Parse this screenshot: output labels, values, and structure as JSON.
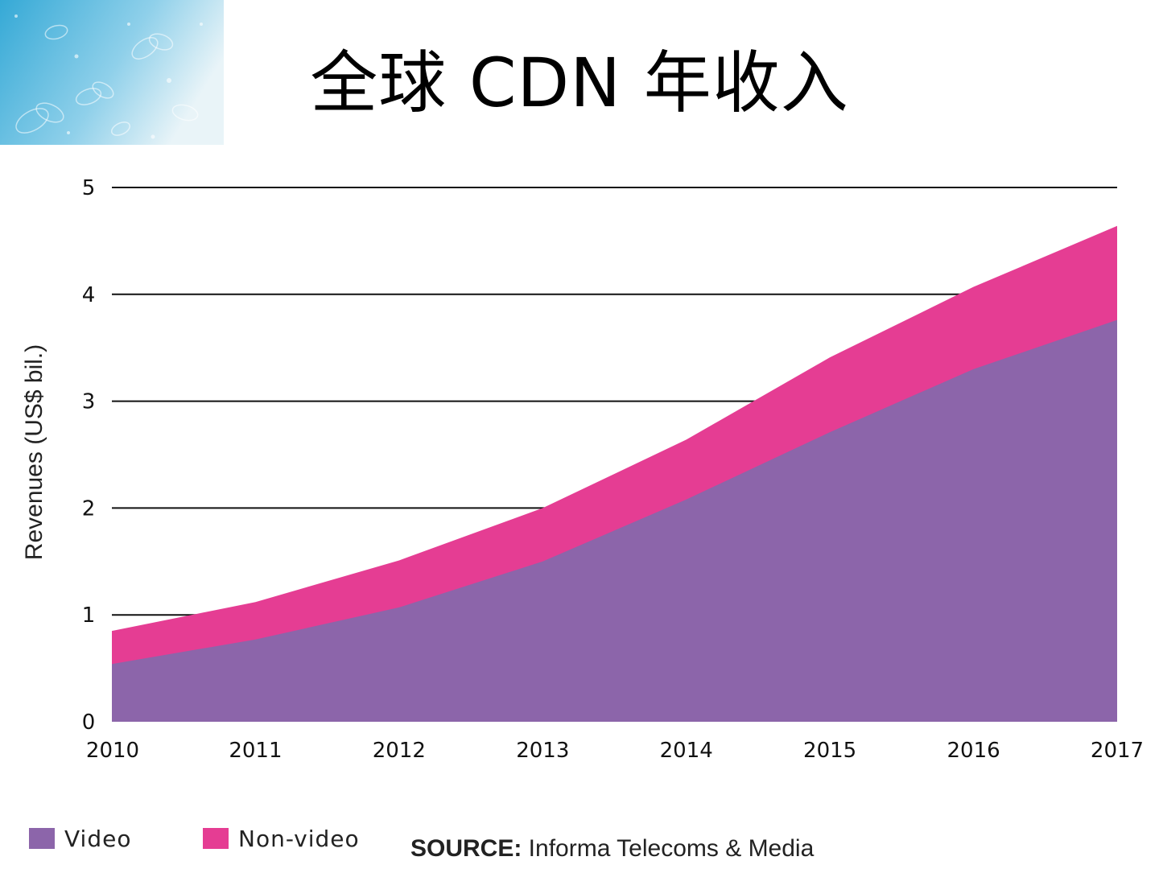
{
  "title": "全球 CDN 年收入",
  "colors": {
    "video": "#8c65aa",
    "non_video": "#e53d93",
    "grid": "#111111",
    "corner_top": "#35a9d6",
    "corner_bottom": "#e9f4f8"
  },
  "chart_data": {
    "type": "area",
    "stacked": true,
    "title": "",
    "xlabel": "",
    "ylabel": "Revenues (US$ bil.)",
    "x": [
      "2010",
      "2011",
      "2012",
      "2013",
      "2014",
      "2015",
      "2016",
      "2017"
    ],
    "xlim": [
      2010,
      2017
    ],
    "ylim": [
      0,
      5
    ],
    "yticks": [
      "0",
      "1",
      "2",
      "3",
      "4",
      "5"
    ],
    "grid": true,
    "series": [
      {
        "name": "Video",
        "color": "#8c65aa",
        "values": [
          0.54,
          0.77,
          1.07,
          1.5,
          2.08,
          2.71,
          3.3,
          3.76
        ]
      },
      {
        "name": "Non-video",
        "color": "#e53d93",
        "values": [
          0.31,
          0.35,
          0.44,
          0.5,
          0.56,
          0.7,
          0.77,
          0.88
        ]
      }
    ],
    "totals": [
      0.85,
      1.12,
      1.51,
      2.0,
      2.64,
      3.41,
      4.07,
      4.64
    ],
    "legend": {
      "position": "bottom-left",
      "items": [
        "Video",
        "Non-video"
      ]
    }
  },
  "source": {
    "prefix": "SOURCE:",
    "text": " Informa Telecoms & Media"
  }
}
